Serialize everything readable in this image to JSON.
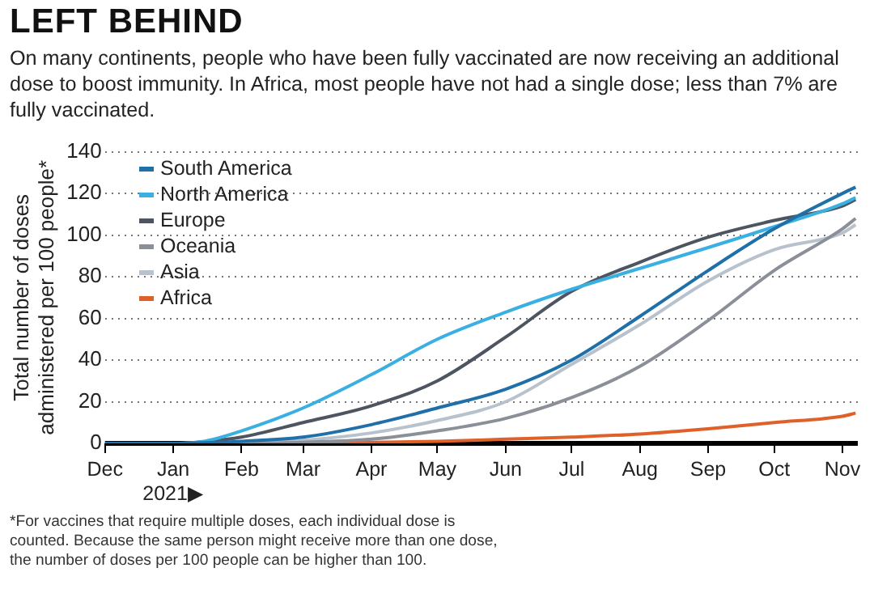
{
  "chart_data": {
    "type": "line",
    "title": "LEFT BEHIND",
    "subtitle": "On many continents, people who have been fully vaccinated are now receiving an additional dose to boost immunity. In Africa, most people have not had a single dose; less than 7% are fully vaccinated.",
    "ylabel": "Total number of doses administered per 100 people*",
    "x": [
      "2020-12-01",
      "2021-01-01",
      "2021-01-15",
      "2021-02-01",
      "2021-03-01",
      "2021-04-01",
      "2021-05-01",
      "2021-06-01",
      "2021-07-01",
      "2021-08-01",
      "2021-09-01",
      "2021-10-01",
      "2021-11-01",
      "2021-11-07"
    ],
    "series": [
      {
        "name": "South America",
        "color": "#1f6fa8",
        "values": [
          0,
          0,
          0.3,
          1,
          3,
          9,
          17,
          26,
          40,
          61,
          83,
          103,
          120,
          123
        ]
      },
      {
        "name": "North America",
        "color": "#3ab0e2",
        "values": [
          0,
          0,
          1,
          6,
          17,
          33,
          50,
          63,
          74,
          84,
          94,
          104,
          115,
          118
        ]
      },
      {
        "name": "Europe",
        "color": "#4d5560",
        "values": [
          0,
          0,
          0.8,
          3,
          10,
          18,
          30,
          51,
          73,
          87,
          99,
          107,
          114,
          117
        ]
      },
      {
        "name": "Oceania",
        "color": "#8a8f98",
        "values": [
          0,
          0,
          0,
          0,
          0.5,
          2,
          6,
          12,
          22,
          37,
          59,
          83,
          103,
          108
        ]
      },
      {
        "name": "Asia",
        "color": "#b8c2cc",
        "values": [
          0,
          0,
          0,
          0.3,
          1.5,
          5,
          11,
          20,
          38,
          57,
          78,
          93,
          101,
          105
        ]
      },
      {
        "name": "Africa",
        "color": "#e0602a",
        "values": [
          null,
          null,
          null,
          0,
          0,
          0.5,
          1,
          2,
          3,
          4.5,
          7,
          10,
          13,
          14.5
        ]
      }
    ],
    "xlim": [
      "2020-12-01",
      "2021-11-08"
    ],
    "xticks": [
      {
        "value": "2020-12-01",
        "label": "Dec"
      },
      {
        "value": "2021-01-01",
        "label": "Jan\n2021▶"
      },
      {
        "value": "2021-02-01",
        "label": "Feb"
      },
      {
        "value": "2021-03-01",
        "label": "Mar"
      },
      {
        "value": "2021-04-01",
        "label": "Apr"
      },
      {
        "value": "2021-05-01",
        "label": "May"
      },
      {
        "value": "2021-06-01",
        "label": "Jun"
      },
      {
        "value": "2021-07-01",
        "label": "Jul"
      },
      {
        "value": "2021-08-01",
        "label": "Aug"
      },
      {
        "value": "2021-09-01",
        "label": "Sep"
      },
      {
        "value": "2021-10-01",
        "label": "Oct"
      },
      {
        "value": "2021-11-01",
        "label": "Nov"
      }
    ],
    "ylim": [
      0,
      140
    ],
    "yticks": [
      0,
      20,
      40,
      60,
      80,
      100,
      120,
      140
    ],
    "grid": "y",
    "legend": "top left",
    "marker": "none",
    "line_style": "solid",
    "annotations": [
      "*For vaccines that require multiple doses, each individual dose is counted. Because the same person might receive more than one dose, the number of doses per 100 people can be higher than 100."
    ]
  }
}
